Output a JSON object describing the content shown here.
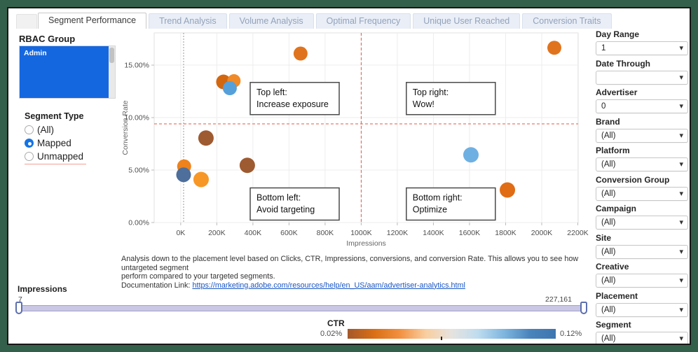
{
  "tabs": {
    "items": [
      {
        "label": "Segment Performance",
        "active": true
      },
      {
        "label": "Trend Analysis",
        "active": false
      },
      {
        "label": "Volume Analysis",
        "active": false
      },
      {
        "label": "Optimal Frequency",
        "active": false
      },
      {
        "label": "Unique User Reached",
        "active": false
      },
      {
        "label": "Conversion Traits",
        "active": false
      }
    ]
  },
  "rbac": {
    "title": "RBAC Group",
    "selected_item": "Admin"
  },
  "segment_type": {
    "title": "Segment Type",
    "options": [
      {
        "label": "(All)",
        "selected": false
      },
      {
        "label": "Mapped",
        "selected": true
      },
      {
        "label": "Unmapped",
        "selected": false
      }
    ]
  },
  "chart_data": {
    "type": "scatter",
    "xlabel": "Impressions",
    "ylabel": "Conversion Rate",
    "x_unit": "thousands",
    "xlim": [
      -147,
      2202
    ],
    "ylim": [
      0,
      18.07
    ],
    "x_ticks": [
      {
        "value": 0,
        "label": "0K"
      },
      {
        "value": 200,
        "label": "200K"
      },
      {
        "value": 400,
        "label": "400K"
      },
      {
        "value": 600,
        "label": "600K"
      },
      {
        "value": 800,
        "label": "800K"
      },
      {
        "value": 1000,
        "label": "1000K"
      },
      {
        "value": 1200,
        "label": "1200K"
      },
      {
        "value": 1400,
        "label": "1400K"
      },
      {
        "value": 1600,
        "label": "1600K"
      },
      {
        "value": 1800,
        "label": "1800K"
      },
      {
        "value": 2000,
        "label": "2000K"
      },
      {
        "value": 2200,
        "label": "2200K"
      }
    ],
    "y_ticks": [
      {
        "value": 0,
        "label": "0.00%"
      },
      {
        "value": 5,
        "label": "5.00%"
      },
      {
        "value": 10,
        "label": "10.00%"
      },
      {
        "value": 15,
        "label": "15.00%"
      }
    ],
    "grid": true,
    "color_by": "CTR (orange = low 0.02%, blue = high 0.12%)",
    "points": [
      {
        "x": 664,
        "y": 16.1,
        "r": 10,
        "color": "#E0741E"
      },
      {
        "x": 2070,
        "y": 16.65,
        "r": 10,
        "color": "#E0741E"
      },
      {
        "x": 237,
        "y": 13.4,
        "r": 10.5,
        "color": "#D26710"
      },
      {
        "x": 295,
        "y": 13.5,
        "r": 9.5,
        "color": "#F08A28"
      },
      {
        "x": 272,
        "y": 12.8,
        "r": 10,
        "color": "#55A0DB"
      },
      {
        "x": 140,
        "y": 8.05,
        "r": 11,
        "color": "#9E5A31"
      },
      {
        "x": 369,
        "y": 5.45,
        "r": 11,
        "color": "#9E5A31"
      },
      {
        "x": 19,
        "y": 5.35,
        "r": 10,
        "color": "#EE821C"
      },
      {
        "x": 16,
        "y": 4.55,
        "r": 10.5,
        "color": "#4E6E9B"
      },
      {
        "x": 113,
        "y": 4.1,
        "r": 11,
        "color": "#F79726"
      },
      {
        "x": 1608,
        "y": 6.45,
        "r": 11,
        "color": "#6FB0E2"
      },
      {
        "x": 1810,
        "y": 3.1,
        "r": 11,
        "color": "#E06C15"
      }
    ],
    "reference_lines": [
      {
        "orientation": "vertical",
        "x": 16,
        "style": "dotted",
        "color": "#9a9a9a"
      },
      {
        "orientation": "horizontal",
        "y": 9.4,
        "style": "dashed",
        "color": "#e05a4a"
      },
      {
        "orientation": "vertical",
        "x": 1000,
        "style": "dashed",
        "color": "#e05a4a"
      }
    ],
    "annotations": [
      {
        "lines": [
          "Top left:",
          "Increase exposure"
        ],
        "x": 385,
        "y": 13.35
      },
      {
        "lines": [
          "Top right:",
          "Wow!"
        ],
        "x": 1250,
        "y": 13.35
      },
      {
        "lines": [
          "Bottom left:",
          "Avoid targeting"
        ],
        "x": 385,
        "y": 3.3
      },
      {
        "lines": [
          "Bottom right:",
          "Optimize"
        ],
        "x": 1250,
        "y": 3.3
      }
    ]
  },
  "caption": {
    "line1": "Analysis down to the placement level based on Clicks, CTR, Impressions, conversions, and conversion Rate. This allows you to see how untargeted segment",
    "line2": "perform compared to your targeted segments.",
    "link_prefix": "Documentation Link: ",
    "link_text": "https://marketing.adobe.com/resources/help/en_US/aam/advertiser-analytics.html"
  },
  "impressions_slider": {
    "label": "Impressions",
    "min_value": "7",
    "max_value": "227,161"
  },
  "ctr_legend": {
    "title": "CTR",
    "min_label": "0.02%",
    "max_label": "0.12%",
    "gradient": [
      "#A4582A",
      "#D96E15",
      "#F29040",
      "#F9CE9E",
      "#E6E3DF",
      "#BFDCEF",
      "#7FB6DF",
      "#4A84BC",
      "#3D76B0"
    ]
  },
  "filters": [
    {
      "label": "Day Range",
      "value": "1"
    },
    {
      "label": "Date Through",
      "value": ""
    },
    {
      "label": "Advertiser",
      "value": "0"
    },
    {
      "label": "Brand",
      "value": "(All)"
    },
    {
      "label": "Platform",
      "value": "(All)"
    },
    {
      "label": "Conversion Group",
      "value": "(All)"
    },
    {
      "label": "Campaign",
      "value": "(All)"
    },
    {
      "label": "Site",
      "value": "(All)"
    },
    {
      "label": "Creative",
      "value": "(All)"
    },
    {
      "label": "Placement",
      "value": "(All)"
    },
    {
      "label": "Segment",
      "value": "(All)"
    }
  ]
}
